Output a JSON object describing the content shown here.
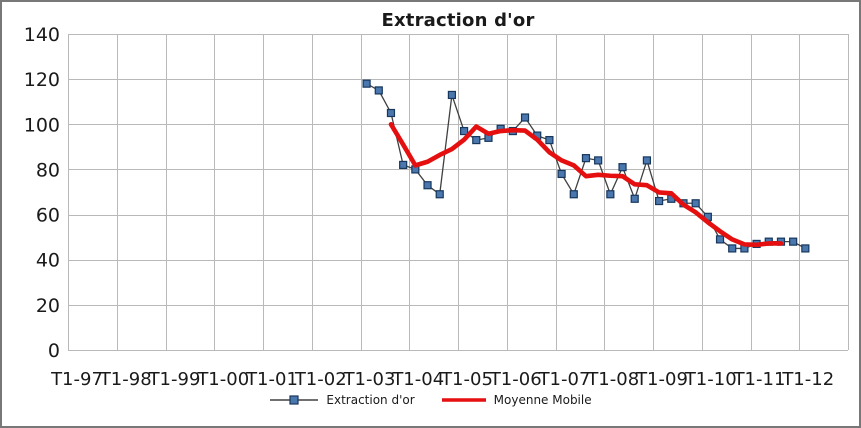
{
  "chart_data": {
    "type": "line",
    "title": "Extraction d'or",
    "grid": true,
    "legend_position": "bottom",
    "y_axis": {
      "min": 0,
      "max": 140,
      "step": 20,
      "ticks": [
        0,
        20,
        40,
        60,
        80,
        100,
        120,
        140
      ]
    },
    "x_axis": {
      "tick_labels": [
        "T1-97",
        "T1-98",
        "T1-99",
        "T1-00",
        "T1-01",
        "T1-02",
        "T1-03",
        "T1-04",
        "T1-05",
        "T1-06",
        "T1-07",
        "T1-08",
        "T1-09",
        "T1-10",
        "T1-11",
        "T1-12"
      ],
      "total_quarters": 64
    },
    "series": [
      {
        "name": "Extraction d'or",
        "type": "line+markers",
        "line_color": "#404040",
        "marker_fill": "#4a77ad",
        "marker_border": "#17375d",
        "start_quarter_index": 24,
        "first_point_label": "T1-03",
        "point_labels": [
          "T1-03",
          "T2-03",
          "T3-03",
          "T4-03",
          "T1-04",
          "T2-04",
          "T3-04",
          "T4-04",
          "T1-05",
          "T2-05",
          "T3-05",
          "T4-05",
          "T1-06",
          "T2-06",
          "T3-06",
          "T4-06",
          "T1-07",
          "T2-07",
          "T3-07",
          "T4-07",
          "T1-08",
          "T2-08",
          "T3-08",
          "T4-08",
          "T1-09",
          "T2-09",
          "T3-09",
          "T4-09",
          "T1-10",
          "T2-10",
          "T3-10",
          "T4-10",
          "T1-11",
          "T2-11",
          "T3-11",
          "T4-11",
          "T1-12"
        ],
        "values": [
          118,
          115,
          105,
          82,
          80,
          73,
          69,
          113,
          97,
          93,
          94,
          98,
          97,
          103,
          95,
          93,
          78,
          69,
          85,
          84,
          69,
          81,
          67,
          84,
          66,
          67,
          65,
          65,
          59,
          49,
          45,
          45,
          47,
          48,
          48,
          48,
          45
        ]
      },
      {
        "name": "Moyenne Mobile",
        "type": "line",
        "color": "#e60f0f",
        "start_quarter_index": 26,
        "first_point_label": "T3-03",
        "window": 5,
        "centered": true,
        "values": [
          100,
          91,
          81.8,
          83.4,
          86.4,
          89,
          93.2,
          99,
          95.8,
          97,
          97.4,
          97.2,
          93.2,
          87.6,
          84,
          81.8,
          77,
          77.6,
          77.2,
          77,
          73.4,
          73,
          69.8,
          69.4,
          64.4,
          61,
          56.6,
          52.6,
          49,
          46.8,
          46.6,
          47.2,
          47.2
        ]
      }
    ]
  }
}
